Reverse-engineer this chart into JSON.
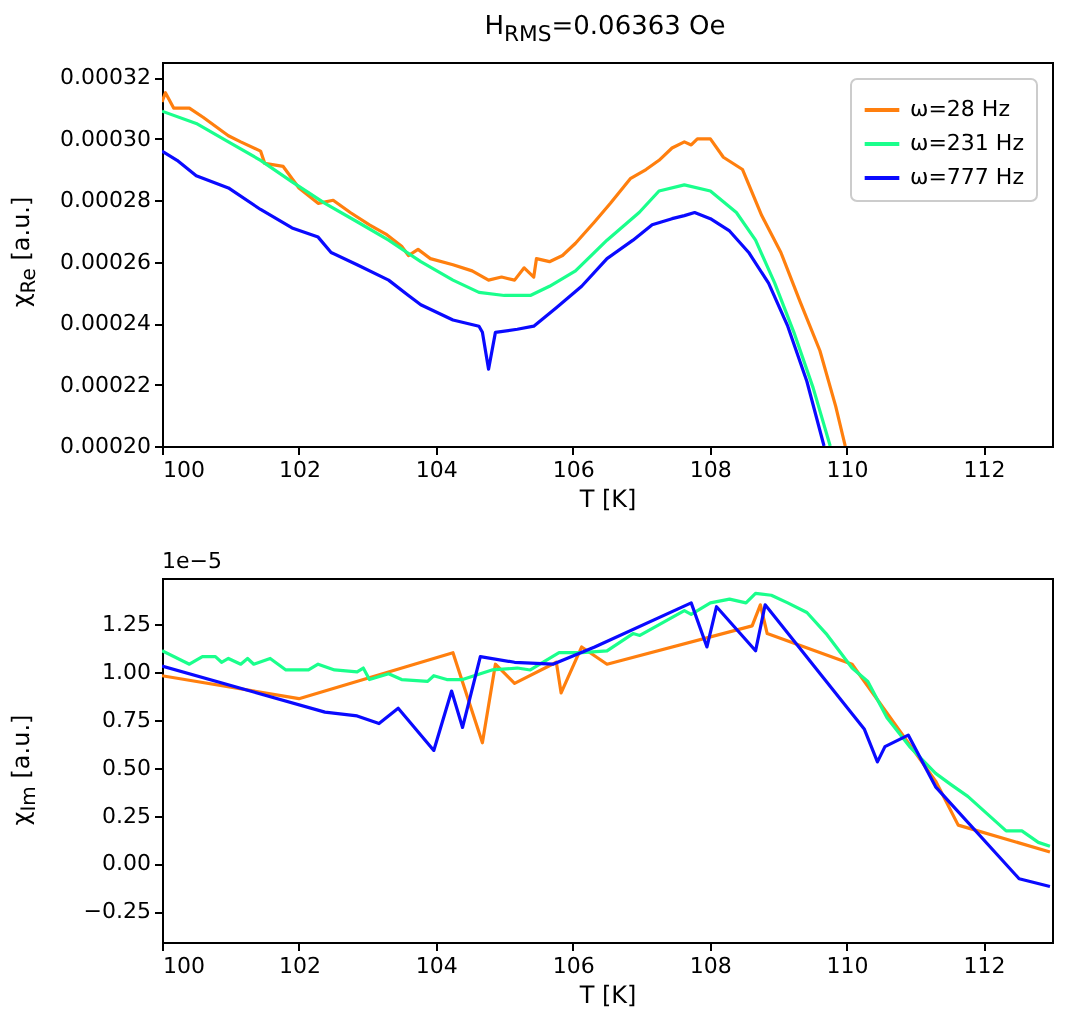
{
  "chart_data": [
    {
      "type": "line",
      "title": "H$_{RMS}$=0.06363 Oe",
      "xlabel": "T [K]",
      "ylabel": "χ$_{Re}$ [a.u.]",
      "xlim": [
        100,
        113
      ],
      "ylim": [
        0.0002,
        0.000325
      ],
      "xticks": [
        100,
        102,
        104,
        106,
        108,
        110,
        112
      ],
      "yticks": [
        {
          "value": 0.0002,
          "label": "0.00020"
        },
        {
          "value": 0.00022,
          "label": "0.00022"
        },
        {
          "value": 0.00024,
          "label": "0.00024"
        },
        {
          "value": 0.00026,
          "label": "0.00026"
        },
        {
          "value": 0.00028,
          "label": "0.00028"
        },
        {
          "value": 0.0003,
          "label": "0.00030"
        },
        {
          "value": 0.00032,
          "label": "0.00032"
        }
      ],
      "grid": false,
      "legend": "top right",
      "series": [
        {
          "name": "ω=28 Hz",
          "color": "#ff7f0e",
          "x": [
            100.0,
            100.05,
            100.17,
            100.4,
            100.6,
            100.97,
            101.15,
            101.44,
            101.5,
            101.77,
            102.0,
            102.28,
            102.5,
            102.75,
            103.03,
            103.27,
            103.5,
            103.6,
            103.74,
            103.92,
            104.25,
            104.53,
            104.77,
            104.96,
            105.15,
            105.29,
            105.43,
            105.47,
            105.66,
            105.85,
            106.04,
            106.32,
            106.55,
            106.84,
            107.07,
            107.26,
            107.45,
            107.63,
            107.73,
            107.82,
            108.01,
            108.2,
            108.48,
            108.76,
            109.04,
            109.32,
            109.61,
            109.84,
            109.98
          ],
          "values": [
            0.000312,
            0.000315,
            0.00031,
            0.00031,
            0.000307,
            0.000301,
            0.000299,
            0.000296,
            0.000292,
            0.000291,
            0.000284,
            0.000279,
            0.00028,
            0.000276,
            0.000272,
            0.000269,
            0.000265,
            0.000262,
            0.000264,
            0.000261,
            0.000259,
            0.000257,
            0.000254,
            0.000255,
            0.000254,
            0.000258,
            0.000255,
            0.000261,
            0.00026,
            0.000262,
            0.000266,
            0.000273,
            0.000279,
            0.000287,
            0.00029,
            0.000293,
            0.000297,
            0.000299,
            0.000298,
            0.0003,
            0.0003,
            0.000294,
            0.00029,
            0.000275,
            0.000263,
            0.000247,
            0.000231,
            0.000213,
            0.0002
          ]
        },
        {
          "name": "ω=231 Hz",
          "color": "#1aff8c",
          "x": [
            100.0,
            100.5,
            100.97,
            101.44,
            101.9,
            102.38,
            102.85,
            103.31,
            103.78,
            104.25,
            104.63,
            105.0,
            105.38,
            105.66,
            106.04,
            106.5,
            106.97,
            107.26,
            107.63,
            108.01,
            108.39,
            108.67,
            108.95,
            109.23,
            109.51,
            109.76
          ],
          "values": [
            0.000309,
            0.000305,
            0.000299,
            0.000293,
            0.000286,
            0.000279,
            0.000273,
            0.000267,
            0.00026,
            0.000254,
            0.00025,
            0.000249,
            0.000249,
            0.000252,
            0.000257,
            0.000267,
            0.000276,
            0.000283,
            0.000285,
            0.000283,
            0.000276,
            0.000267,
            0.000253,
            0.000237,
            0.000219,
            0.0002
          ]
        },
        {
          "name": "ω=777 Hz",
          "color": "#0a0aff",
          "x": [
            100.0,
            100.22,
            100.5,
            100.97,
            101.44,
            101.9,
            102.28,
            102.47,
            102.85,
            103.31,
            103.6,
            103.78,
            104.25,
            104.63,
            104.68,
            104.77,
            104.87,
            105.19,
            105.43,
            105.76,
            106.13,
            106.5,
            106.88,
            107.16,
            107.45,
            107.63,
            107.78,
            108.01,
            108.29,
            108.57,
            108.86,
            109.14,
            109.42,
            109.67
          ],
          "values": [
            0.000296,
            0.000293,
            0.000288,
            0.000284,
            0.000277,
            0.000271,
            0.000268,
            0.000263,
            0.000259,
            0.000254,
            0.000249,
            0.000246,
            0.000241,
            0.000239,
            0.000237,
            0.000225,
            0.000237,
            0.000238,
            0.000239,
            0.000245,
            0.000252,
            0.000261,
            0.000267,
            0.000272,
            0.000274,
            0.000275,
            0.000276,
            0.000274,
            0.00027,
            0.000263,
            0.000253,
            0.000239,
            0.000221,
            0.0002
          ]
        }
      ]
    },
    {
      "type": "line",
      "xlabel": "T [K]",
      "ylabel": "χ$_{Im}$ [a.u.]",
      "annotations": [
        "1e−5"
      ],
      "xlim": [
        100,
        113
      ],
      "ylim": [
        -0.41,
        1.49
      ],
      "xticks": [
        100,
        102,
        104,
        106,
        108,
        110,
        112
      ],
      "yticks": [
        {
          "value": -0.25,
          "label": "−0.25"
        },
        {
          "value": 0,
          "label": "0.00"
        },
        {
          "value": 0.25,
          "label": "0.25"
        },
        {
          "value": 0.5,
          "label": "0.50"
        },
        {
          "value": 0.75,
          "label": "0.75"
        },
        {
          "value": 1,
          "label": "1.00"
        },
        {
          "value": 1.25,
          "label": "1.25"
        }
      ],
      "grid": false,
      "series": [
        {
          "color": "#ff7f0e",
          "x": [
            100.0,
            102.0,
            104.25,
            104.68,
            104.87,
            105.15,
            105.76,
            105.83,
            106.13,
            106.5,
            108.62,
            108.74,
            108.84,
            110.08,
            111.3,
            111.63,
            112.97
          ],
          "values": [
            0.98,
            0.86,
            1.1,
            0.63,
            1.04,
            0.94,
            1.05,
            0.89,
            1.13,
            1.04,
            1.24,
            1.35,
            1.2,
            1.04,
            0.43,
            0.2,
            0.06
          ]
        },
        {
          "color": "#1aff8c",
          "x": [
            100.0,
            100.4,
            100.59,
            100.78,
            100.87,
            100.97,
            101.15,
            101.25,
            101.34,
            101.58,
            101.81,
            102.14,
            102.28,
            102.52,
            102.85,
            102.94,
            103.03,
            103.31,
            103.5,
            103.88,
            103.97,
            104.16,
            104.39,
            104.82,
            105.19,
            105.38,
            105.8,
            106.13,
            106.5,
            106.88,
            106.98,
            107.63,
            107.73,
            108.01,
            108.29,
            108.53,
            108.67,
            108.9,
            109.14,
            109.42,
            109.7,
            110.08,
            110.31,
            110.59,
            110.92,
            111.3,
            111.53,
            111.77,
            112.33,
            112.56,
            112.8,
            112.97
          ],
          "values": [
            1.11,
            1.04,
            1.08,
            1.08,
            1.05,
            1.07,
            1.04,
            1.07,
            1.04,
            1.07,
            1.01,
            1.01,
            1.04,
            1.01,
            1.0,
            1.02,
            0.96,
            0.99,
            0.96,
            0.95,
            0.98,
            0.96,
            0.96,
            1.01,
            1.02,
            1.01,
            1.1,
            1.1,
            1.11,
            1.2,
            1.19,
            1.32,
            1.3,
            1.36,
            1.38,
            1.36,
            1.41,
            1.4,
            1.36,
            1.31,
            1.2,
            1.02,
            0.95,
            0.76,
            0.61,
            0.47,
            0.41,
            0.35,
            0.17,
            0.17,
            0.11,
            0.09
          ]
        },
        {
          "color": "#0a0aff",
          "x": [
            100.0,
            102.38,
            102.85,
            103.17,
            103.45,
            103.97,
            104.23,
            104.39,
            104.65,
            105.15,
            105.71,
            106.32,
            107.73,
            107.96,
            108.1,
            108.67,
            108.81,
            110.26,
            110.45,
            110.56,
            110.9,
            111.3,
            112.52,
            112.97
          ],
          "values": [
            1.03,
            0.79,
            0.77,
            0.73,
            0.81,
            0.59,
            0.9,
            0.71,
            1.08,
            1.05,
            1.04,
            1.13,
            1.36,
            1.13,
            1.34,
            1.11,
            1.35,
            0.7,
            0.53,
            0.61,
            0.67,
            0.4,
            -0.08,
            -0.12
          ]
        }
      ]
    }
  ]
}
